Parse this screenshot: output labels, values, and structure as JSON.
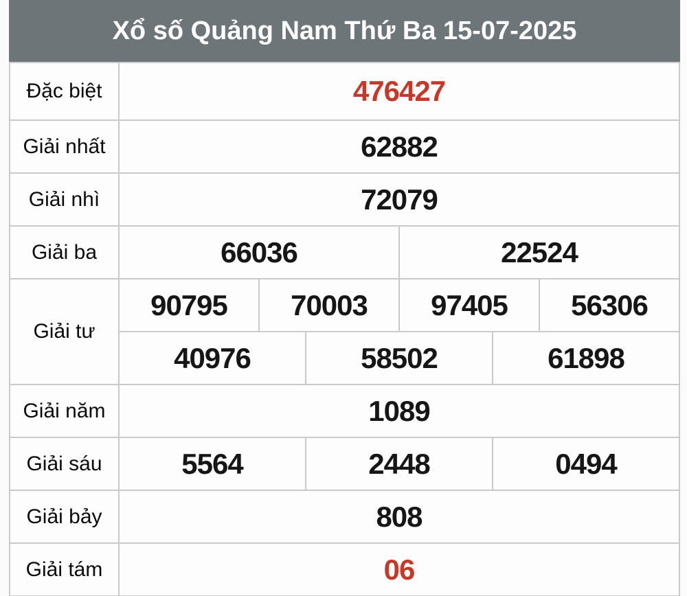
{
  "header": {
    "title": "Xổ số Quảng Nam Thứ Ba 15-07-2025"
  },
  "table": {
    "rows": [
      {
        "label": "Đặc biệt",
        "highlight": true,
        "groups": [
          [
            "476427"
          ]
        ]
      },
      {
        "label": "Giải nhất",
        "highlight": false,
        "groups": [
          [
            "62882"
          ]
        ]
      },
      {
        "label": "Giải nhì",
        "highlight": false,
        "groups": [
          [
            "72079"
          ]
        ]
      },
      {
        "label": "Giải ba",
        "highlight": false,
        "groups": [
          [
            "66036",
            "22524"
          ]
        ]
      },
      {
        "label": "Giải tư",
        "highlight": false,
        "groups": [
          [
            "90795",
            "70003",
            "97405",
            "56306"
          ],
          [
            "40976",
            "58502",
            "61898"
          ]
        ]
      },
      {
        "label": "Giải năm",
        "highlight": false,
        "groups": [
          [
            "1089"
          ]
        ]
      },
      {
        "label": "Giải sáu",
        "highlight": false,
        "groups": [
          [
            "5564",
            "2448",
            "0494"
          ]
        ]
      },
      {
        "label": "Giải bảy",
        "highlight": false,
        "groups": [
          [
            "808"
          ]
        ]
      },
      {
        "label": "Giải tám",
        "highlight": true,
        "groups": [
          [
            "06"
          ]
        ]
      }
    ]
  },
  "colors": {
    "highlight_red": "#c23a29",
    "header_bg": "#6e7579",
    "header_text": "#fdfdfd",
    "grid_line": "#cacaca",
    "cell_bg": "#fdfdfd",
    "number_text": "#161616"
  }
}
